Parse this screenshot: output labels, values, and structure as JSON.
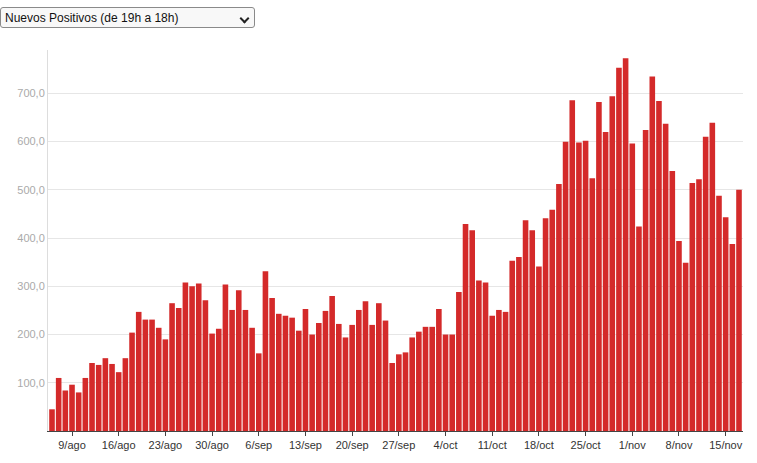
{
  "chart_data": {
    "type": "bar",
    "title": "Nuevos Positivos (de 19h a 18h)",
    "categories": [
      null,
      null,
      null,
      "9/ago",
      null,
      null,
      null,
      null,
      null,
      null,
      "16/ago",
      null,
      null,
      null,
      null,
      null,
      null,
      "23/ago",
      null,
      null,
      null,
      null,
      null,
      null,
      "30/ago",
      null,
      null,
      null,
      null,
      null,
      null,
      "6/sep",
      null,
      null,
      null,
      null,
      null,
      null,
      "13/sep",
      null,
      null,
      null,
      null,
      null,
      null,
      "20/sep",
      null,
      null,
      null,
      null,
      null,
      null,
      "27/sep",
      null,
      null,
      null,
      null,
      null,
      null,
      "4/oct",
      null,
      null,
      null,
      null,
      null,
      null,
      "11/oct",
      null,
      null,
      null,
      null,
      null,
      null,
      "18/oct",
      null,
      null,
      null,
      null,
      null,
      null,
      "25/oct",
      null,
      null,
      null,
      null,
      null,
      null,
      "1/nov",
      null,
      null,
      null,
      null,
      null,
      null,
      "8/nov",
      null,
      null,
      null,
      null,
      null,
      null,
      "15/nov",
      null,
      null
    ],
    "values": [
      45,
      110,
      84,
      96,
      80,
      110,
      141,
      137,
      151,
      139,
      122,
      151,
      204,
      247,
      231,
      231,
      214,
      190,
      265,
      255,
      308,
      300,
      306,
      271,
      202,
      212,
      304,
      251,
      292,
      251,
      214,
      161,
      331,
      276,
      243,
      239,
      235,
      208,
      253,
      200,
      224,
      249,
      280,
      222,
      194,
      220,
      251,
      269,
      220,
      265,
      229,
      141,
      159,
      163,
      194,
      206,
      216,
      216,
      253,
      200,
      200,
      288,
      429,
      416,
      312,
      308,
      239,
      251,
      247,
      353,
      361,
      437,
      416,
      341,
      441,
      459,
      512,
      600,
      686,
      598,
      602,
      524,
      682,
      620,
      694,
      753,
      773,
      596,
      424,
      624,
      735,
      684,
      637,
      539,
      394,
      349,
      514,
      522,
      610,
      639,
      488,
      443,
      388,
      500
    ],
    "color": "#d42a2a",
    "ylim": [
      0,
      790
    ],
    "yticks": [
      {
        "value": 100,
        "label": "100,0"
      },
      {
        "value": 200,
        "label": "200,0"
      },
      {
        "value": 300,
        "label": "300,0"
      },
      {
        "value": 400,
        "label": "400,0"
      },
      {
        "value": 500,
        "label": "500,0"
      },
      {
        "value": 600,
        "label": "600,0"
      },
      {
        "value": 700,
        "label": "700,0"
      }
    ],
    "grid": true
  }
}
